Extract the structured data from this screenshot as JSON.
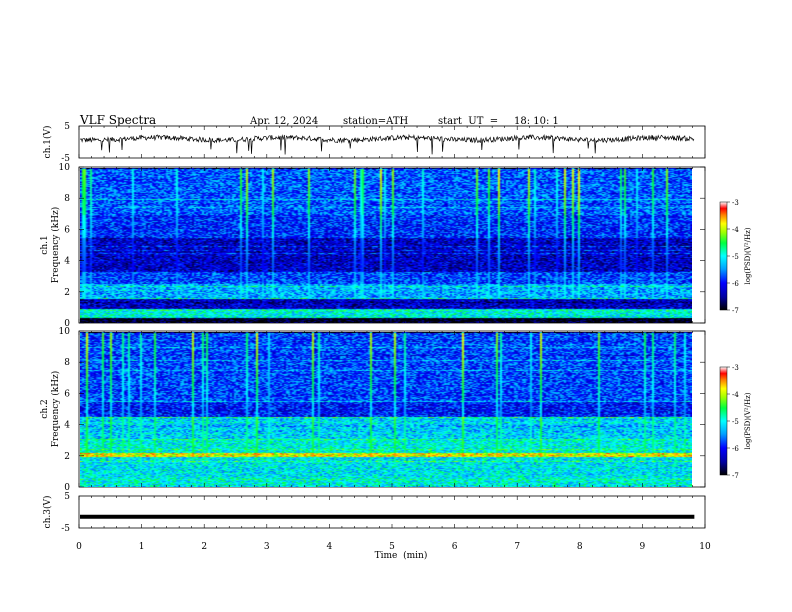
{
  "header": {
    "title": "VLF  Spectra",
    "date": "Apr. 12, 2024",
    "station": "station=ATH",
    "start": "start  UT  =     18: 10: 1"
  },
  "chart_data": [
    {
      "type": "line",
      "name": "ch1-waveform",
      "ylabel": "ch.1(V)",
      "ylim": [
        -5,
        5
      ],
      "yticks": [
        "5",
        "-5"
      ],
      "xlim": [
        0,
        10
      ],
      "approx_level": 1,
      "color": "#000000"
    },
    {
      "type": "heatmap",
      "name": "ch1-spectrogram",
      "ylabel": "Frequency (kHz)",
      "channel_label": "ch.1",
      "ylim": [
        0,
        10
      ],
      "yticks": [
        "0",
        "2",
        "4",
        "6",
        "8",
        "10"
      ],
      "xlim": [
        0,
        9.83
      ],
      "colorbar": {
        "label": "log(PSD)(V²/Hz)",
        "ticks": [
          "-3",
          "-4",
          "-5",
          "-6",
          "-7"
        ],
        "range": [
          -7,
          -3
        ]
      },
      "bands": [
        {
          "from": 0.0,
          "to": 0.3,
          "level": -7
        },
        {
          "from": 0.3,
          "to": 0.9,
          "level": -5
        },
        {
          "from": 0.9,
          "to": 1.5,
          "level": -6.3
        },
        {
          "from": 1.5,
          "to": 2.5,
          "level": -5.4
        },
        {
          "from": 2.5,
          "to": 3.3,
          "level": -5.8
        },
        {
          "from": 3.3,
          "to": 5.5,
          "level": -6.3
        },
        {
          "from": 5.5,
          "to": 7.0,
          "level": -5.9
        },
        {
          "from": 7.0,
          "to": 10.0,
          "level": -5.7
        }
      ]
    },
    {
      "type": "heatmap",
      "name": "ch2-spectrogram",
      "ylabel": "Frequency (kHz)",
      "channel_label": "ch.2",
      "ylim": [
        0,
        10
      ],
      "yticks": [
        "0",
        "2",
        "4",
        "6",
        "8",
        "10"
      ],
      "xlim": [
        0,
        9.83
      ],
      "colorbar": {
        "label": "log(PSD)(V²/Hz)",
        "ticks": [
          "-3",
          "-4",
          "-5",
          "-6",
          "-7"
        ],
        "range": [
          -7,
          -3
        ]
      },
      "bands": [
        {
          "from": 0.0,
          "to": 0.6,
          "level": -5.0
        },
        {
          "from": 0.6,
          "to": 1.9,
          "level": -5.1
        },
        {
          "from": 1.9,
          "to": 2.2,
          "level": -3.9
        },
        {
          "from": 2.2,
          "to": 3.0,
          "level": -5.0
        },
        {
          "from": 3.0,
          "to": 4.5,
          "level": -5.2
        },
        {
          "from": 4.5,
          "to": 5.5,
          "level": -6.0
        },
        {
          "from": 5.5,
          "to": 10.0,
          "level": -5.8
        }
      ]
    },
    {
      "type": "line",
      "name": "ch3-waveform",
      "ylabel": "ch.3(V)",
      "ylim": [
        -5,
        5
      ],
      "yticks": [
        "5",
        "-5"
      ],
      "xlim": [
        0,
        9.83
      ],
      "approx_level": -1.5,
      "color": "#000000"
    }
  ],
  "xaxis": {
    "label": "Time  (min)",
    "ticks": [
      "0",
      "1",
      "2",
      "3",
      "4",
      "5",
      "6",
      "7",
      "8",
      "9",
      "10"
    ]
  }
}
